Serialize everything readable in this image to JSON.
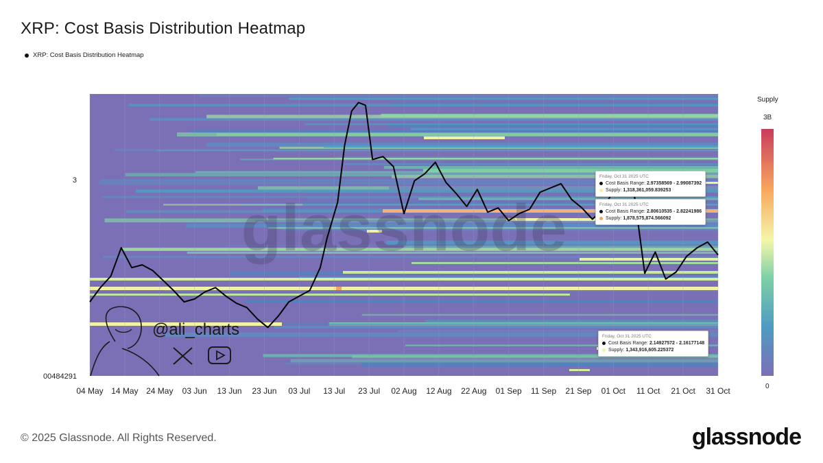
{
  "title": "XRP: Cost Basis Distribution Heatmap",
  "legend_label": "XRP: Cost Basis Distribution Heatmap",
  "footer": "© 2025 Glassnode. All Rights Reserved.",
  "brand": "glassnode",
  "watermark": "glassnode",
  "handle": "@ali_charts",
  "colorbar": {
    "title": "Supply",
    "max_label": "3B",
    "min_label": "0"
  },
  "tooltips": [
    {
      "date": "Friday, Oct 31 2025 UTC",
      "range_label": "Cost Basis Range:",
      "range": "2.97358569 - 2.99087392",
      "supply_label": "Supply:",
      "supply": "1,318,361,059.839253",
      "color": "#f3f1a6"
    },
    {
      "date": "Friday, Oct 31 2025 UTC",
      "range_label": "Cost Basis Range:",
      "range": "2.80610535 - 2.82241986",
      "supply_label": "Supply:",
      "supply": "1,878,575,874.566092",
      "color": "#f6a15f"
    },
    {
      "date": "Friday, Oct 31 2025 UTC",
      "range_label": "Cost Basis Range:",
      "range": "2.14927572 - 2.16177148",
      "supply_label": "Supply:",
      "supply": "1,343,916,605.225372",
      "color": "#f3f1a6"
    }
  ],
  "chart_data": {
    "type": "heatmap",
    "title": "XRP: Cost Basis Distribution Heatmap",
    "x_tick_labels": [
      "04 May",
      "14 May",
      "24 May",
      "03 Jun",
      "13 Jun",
      "23 Jun",
      "03 Jul",
      "13 Jul",
      "23 Jul",
      "02 Aug",
      "12 Aug",
      "22 Aug",
      "01 Sep",
      "11 Sep",
      "21 Sep",
      "01 Oct",
      "11 Oct",
      "21 Oct",
      "31 Oct"
    ],
    "y_tick_labels": [
      "3",
      "00484291"
    ],
    "colorscale": "spectral",
    "colorbar_range": [
      0,
      3000000000
    ],
    "grid": true,
    "legend_position": "top-left",
    "price_series": {
      "name": "XRP: Cost Basis Distribution Heatmap",
      "x": [
        "2025-05-04",
        "2025-05-07",
        "2025-05-10",
        "2025-05-13",
        "2025-05-16",
        "2025-05-19",
        "2025-05-22",
        "2025-05-25",
        "2025-05-28",
        "2025-05-31",
        "2025-06-03",
        "2025-06-06",
        "2025-06-09",
        "2025-06-12",
        "2025-06-15",
        "2025-06-18",
        "2025-06-21",
        "2025-06-24",
        "2025-06-27",
        "2025-06-30",
        "2025-07-03",
        "2025-07-06",
        "2025-07-09",
        "2025-07-11",
        "2025-07-14",
        "2025-07-16",
        "2025-07-18",
        "2025-07-20",
        "2025-07-22",
        "2025-07-24",
        "2025-07-27",
        "2025-07-30",
        "2025-08-02",
        "2025-08-05",
        "2025-08-08",
        "2025-08-11",
        "2025-08-14",
        "2025-08-17",
        "2025-08-20",
        "2025-08-23",
        "2025-08-26",
        "2025-08-29",
        "2025-09-01",
        "2025-09-04",
        "2025-09-07",
        "2025-09-10",
        "2025-09-13",
        "2025-09-16",
        "2025-09-19",
        "2025-09-22",
        "2025-09-25",
        "2025-09-28",
        "2025-10-01",
        "2025-10-04",
        "2025-10-07",
        "2025-10-10",
        "2025-10-13",
        "2025-10-16",
        "2025-10-19",
        "2025-10-22",
        "2025-10-25",
        "2025-10-28",
        "2025-10-31"
      ],
      "y": [
        2.2,
        2.3,
        2.38,
        2.58,
        2.44,
        2.46,
        2.42,
        2.35,
        2.28,
        2.2,
        2.22,
        2.27,
        2.3,
        2.24,
        2.19,
        2.16,
        2.08,
        2.02,
        2.1,
        2.2,
        2.24,
        2.28,
        2.44,
        2.65,
        2.9,
        3.3,
        3.54,
        3.6,
        3.58,
        3.2,
        3.22,
        3.15,
        2.82,
        3.05,
        3.1,
        3.18,
        3.04,
        2.96,
        2.87,
        2.99,
        2.83,
        2.86,
        2.77,
        2.82,
        2.85,
        2.97,
        3.0,
        3.03,
        2.92,
        2.86,
        2.78,
        2.85,
        2.98,
        2.97,
        2.95,
        2.4,
        2.55,
        2.36,
        2.41,
        2.52,
        2.58,
        2.62,
        2.53
      ]
    },
    "highlighted_bands": [
      {
        "date": "2025-10-31",
        "cost_basis_range": [
          2.97358569,
          2.99087392
        ],
        "supply": 1318361059.839253
      },
      {
        "date": "2025-10-31",
        "cost_basis_range": [
          2.80610535,
          2.82241986
        ],
        "supply": 1878575874.566092
      },
      {
        "date": "2025-10-31",
        "cost_basis_range": [
          2.14927572,
          2.16177148
        ],
        "supply": 1343916605.225372
      }
    ]
  }
}
